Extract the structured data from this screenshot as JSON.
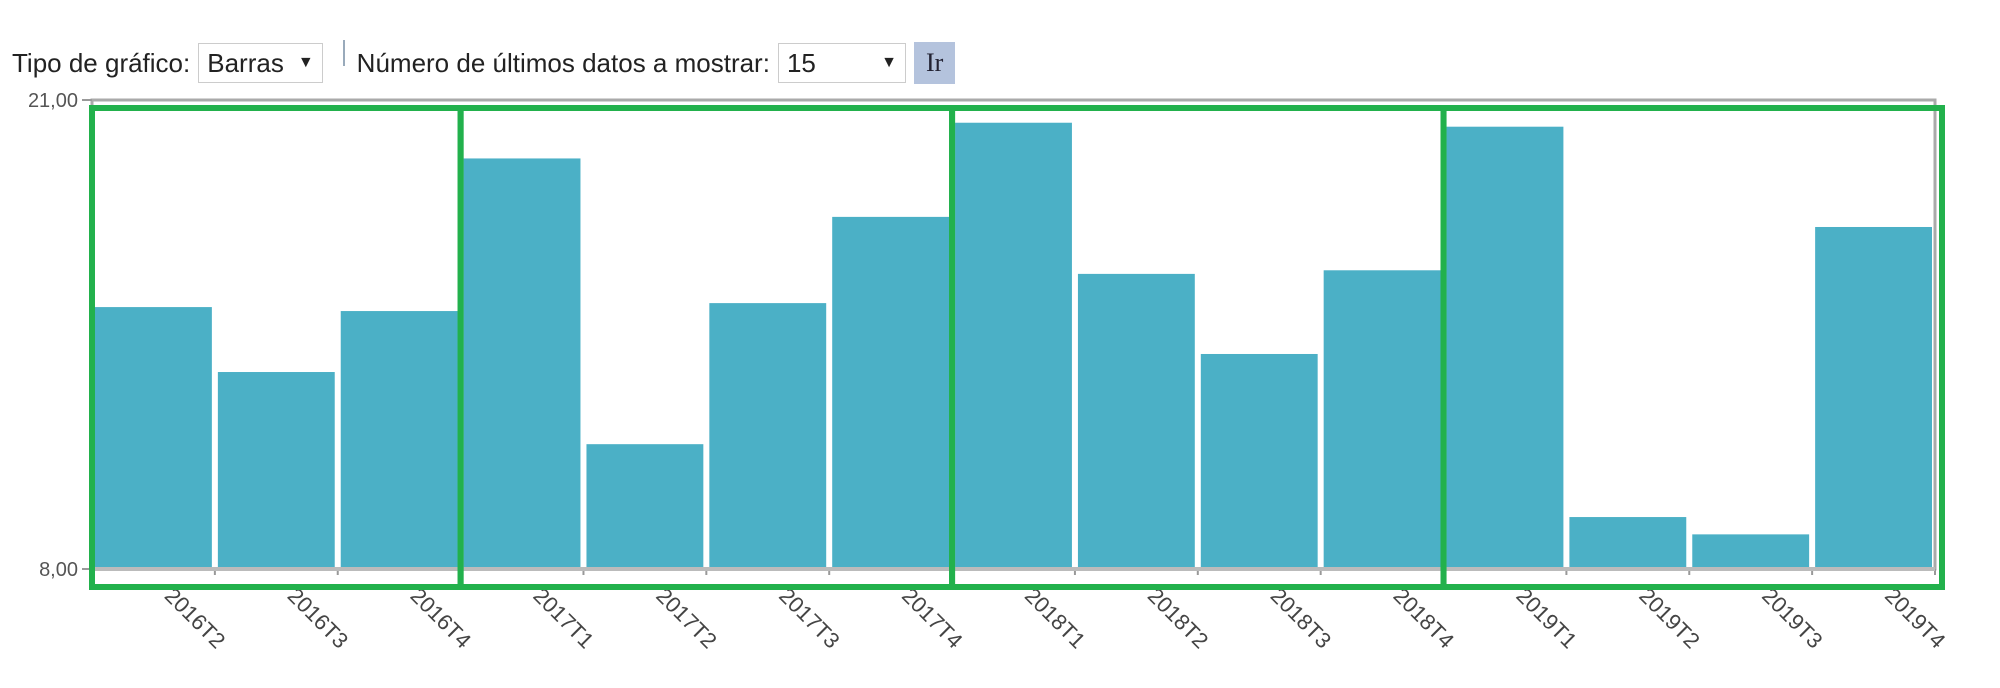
{
  "controls": {
    "chart_type_label": "Tipo de gráfico:",
    "chart_type_value": "Barras",
    "count_label": "Número de últimos datos a mostrar:",
    "count_value": "15",
    "go_label": "Ir"
  },
  "colors": {
    "bar": "#4bb0c6",
    "highlight_box": "#22b14c",
    "axis": "#999999"
  },
  "chart_data": {
    "type": "bar",
    "categories": [
      "2016T2",
      "2016T3",
      "2016T4",
      "2017T1",
      "2017T2",
      "2017T3",
      "2017T4",
      "2018T1",
      "2018T2",
      "2018T3",
      "2018T4",
      "2019T1",
      "2019T2",
      "2019T3",
      "2019T4"
    ],
    "values": [
      15.26,
      13.46,
      15.15,
      19.38,
      11.46,
      15.37,
      17.76,
      20.37,
      16.18,
      13.96,
      16.28,
      20.26,
      9.44,
      8.96,
      17.48
    ],
    "ylim": [
      8,
      21
    ],
    "ytick_labels": [
      "8,00",
      "21,00"
    ],
    "highlight_groups": [
      [
        "2016T2",
        "2016T4"
      ],
      [
        "2017T1",
        "2017T4"
      ],
      [
        "2018T1",
        "2018T4"
      ],
      [
        "2019T1",
        "2019T4"
      ]
    ]
  }
}
